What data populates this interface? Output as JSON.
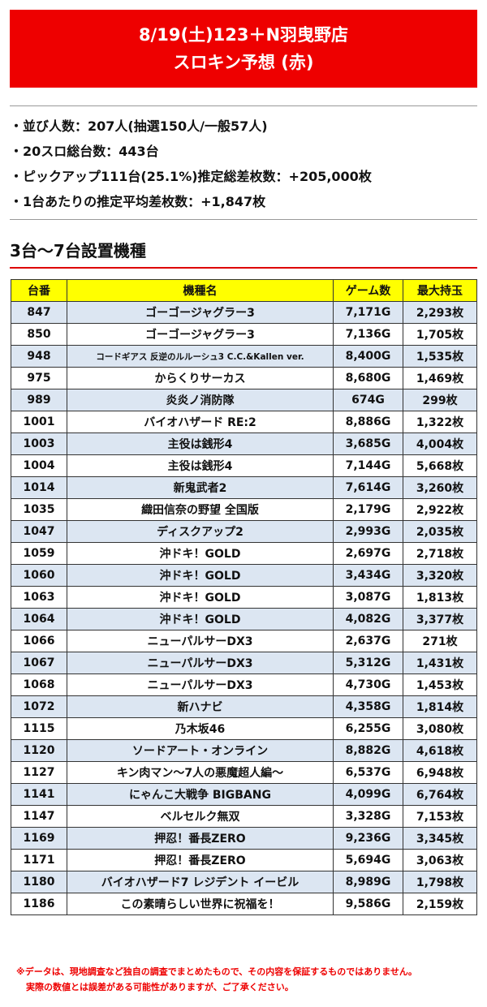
{
  "header": {
    "line1": "8/19(土)123＋N羽曳野店",
    "line2": "スロキン予想 (赤)"
  },
  "summary": [
    "・並び人数：207人(抽選150人/一般57人)",
    "・20スロ総台数：443台",
    "・ピックアップ111台(25.1%)推定総差枚数：+205,000枚",
    "・1台あたりの推定平均差枚数：+1,847枚"
  ],
  "section_title": "3台～7台設置機種",
  "table": {
    "headers": [
      "台番",
      "機種名",
      "ゲーム数",
      "最大持玉"
    ],
    "rows": [
      [
        "847",
        "ゴーゴージャグラー3",
        "7,171G",
        "2,293枚"
      ],
      [
        "850",
        "ゴーゴージャグラー3",
        "7,136G",
        "1,705枚"
      ],
      [
        "948",
        "コードギアス 反逆のルルーシュ3 C.C.&Kallen ver.",
        "8,400G",
        "1,535枚"
      ],
      [
        "975",
        "からくりサーカス",
        "8,680G",
        "1,469枚"
      ],
      [
        "989",
        "炎炎ノ消防隊",
        "674G",
        "299枚"
      ],
      [
        "1001",
        "バイオハザード RE:2",
        "8,886G",
        "1,322枚"
      ],
      [
        "1003",
        "主役は銭形4",
        "3,685G",
        "4,004枚"
      ],
      [
        "1004",
        "主役は銭形4",
        "7,144G",
        "5,668枚"
      ],
      [
        "1014",
        "新鬼武者2",
        "7,614G",
        "3,260枚"
      ],
      [
        "1035",
        "織田信奈の野望 全国版",
        "2,179G",
        "2,922枚"
      ],
      [
        "1047",
        "ディスクアップ2",
        "2,993G",
        "2,035枚"
      ],
      [
        "1059",
        "沖ドキ！GOLD",
        "2,697G",
        "2,718枚"
      ],
      [
        "1060",
        "沖ドキ！GOLD",
        "3,434G",
        "3,320枚"
      ],
      [
        "1063",
        "沖ドキ！GOLD",
        "3,087G",
        "1,813枚"
      ],
      [
        "1064",
        "沖ドキ！GOLD",
        "4,082G",
        "3,377枚"
      ],
      [
        "1066",
        "ニューパルサーDX3",
        "2,637G",
        "271枚"
      ],
      [
        "1067",
        "ニューパルサーDX3",
        "5,312G",
        "1,431枚"
      ],
      [
        "1068",
        "ニューパルサーDX3",
        "4,730G",
        "1,453枚"
      ],
      [
        "1072",
        "新ハナビ",
        "4,358G",
        "1,814枚"
      ],
      [
        "1115",
        "乃木坂46",
        "6,255G",
        "3,080枚"
      ],
      [
        "1120",
        "ソードアート・オンライン",
        "8,882G",
        "4,618枚"
      ],
      [
        "1127",
        "キン肉マン～7人の悪魔超人編～",
        "6,537G",
        "6,948枚"
      ],
      [
        "1141",
        "にゃんこ大戦争 BIGBANG",
        "4,099G",
        "6,764枚"
      ],
      [
        "1147",
        "ベルセルク無双",
        "3,328G",
        "7,153枚"
      ],
      [
        "1169",
        "押忍！番長ZERO",
        "9,236G",
        "3,345枚"
      ],
      [
        "1171",
        "押忍！番長ZERO",
        "5,694G",
        "3,063枚"
      ],
      [
        "1180",
        "バイオハザード7 レジデント イービル",
        "8,989G",
        "1,798枚"
      ],
      [
        "1186",
        "この素晴らしい世界に祝福を！",
        "9,586G",
        "2,159枚"
      ]
    ]
  },
  "footnote": [
    "※データは、現地調査など独自の調査でまとめたもので、その内容を保証するものではありません。",
    "実際の数値とは誤差がある可能性がありますが、ご了承ください。"
  ],
  "colors": {
    "header_bg": "#ee0000",
    "table_header_bg": "#ffff00",
    "row_alt_bg": "#dce6f2",
    "accent": "#dd0000"
  }
}
